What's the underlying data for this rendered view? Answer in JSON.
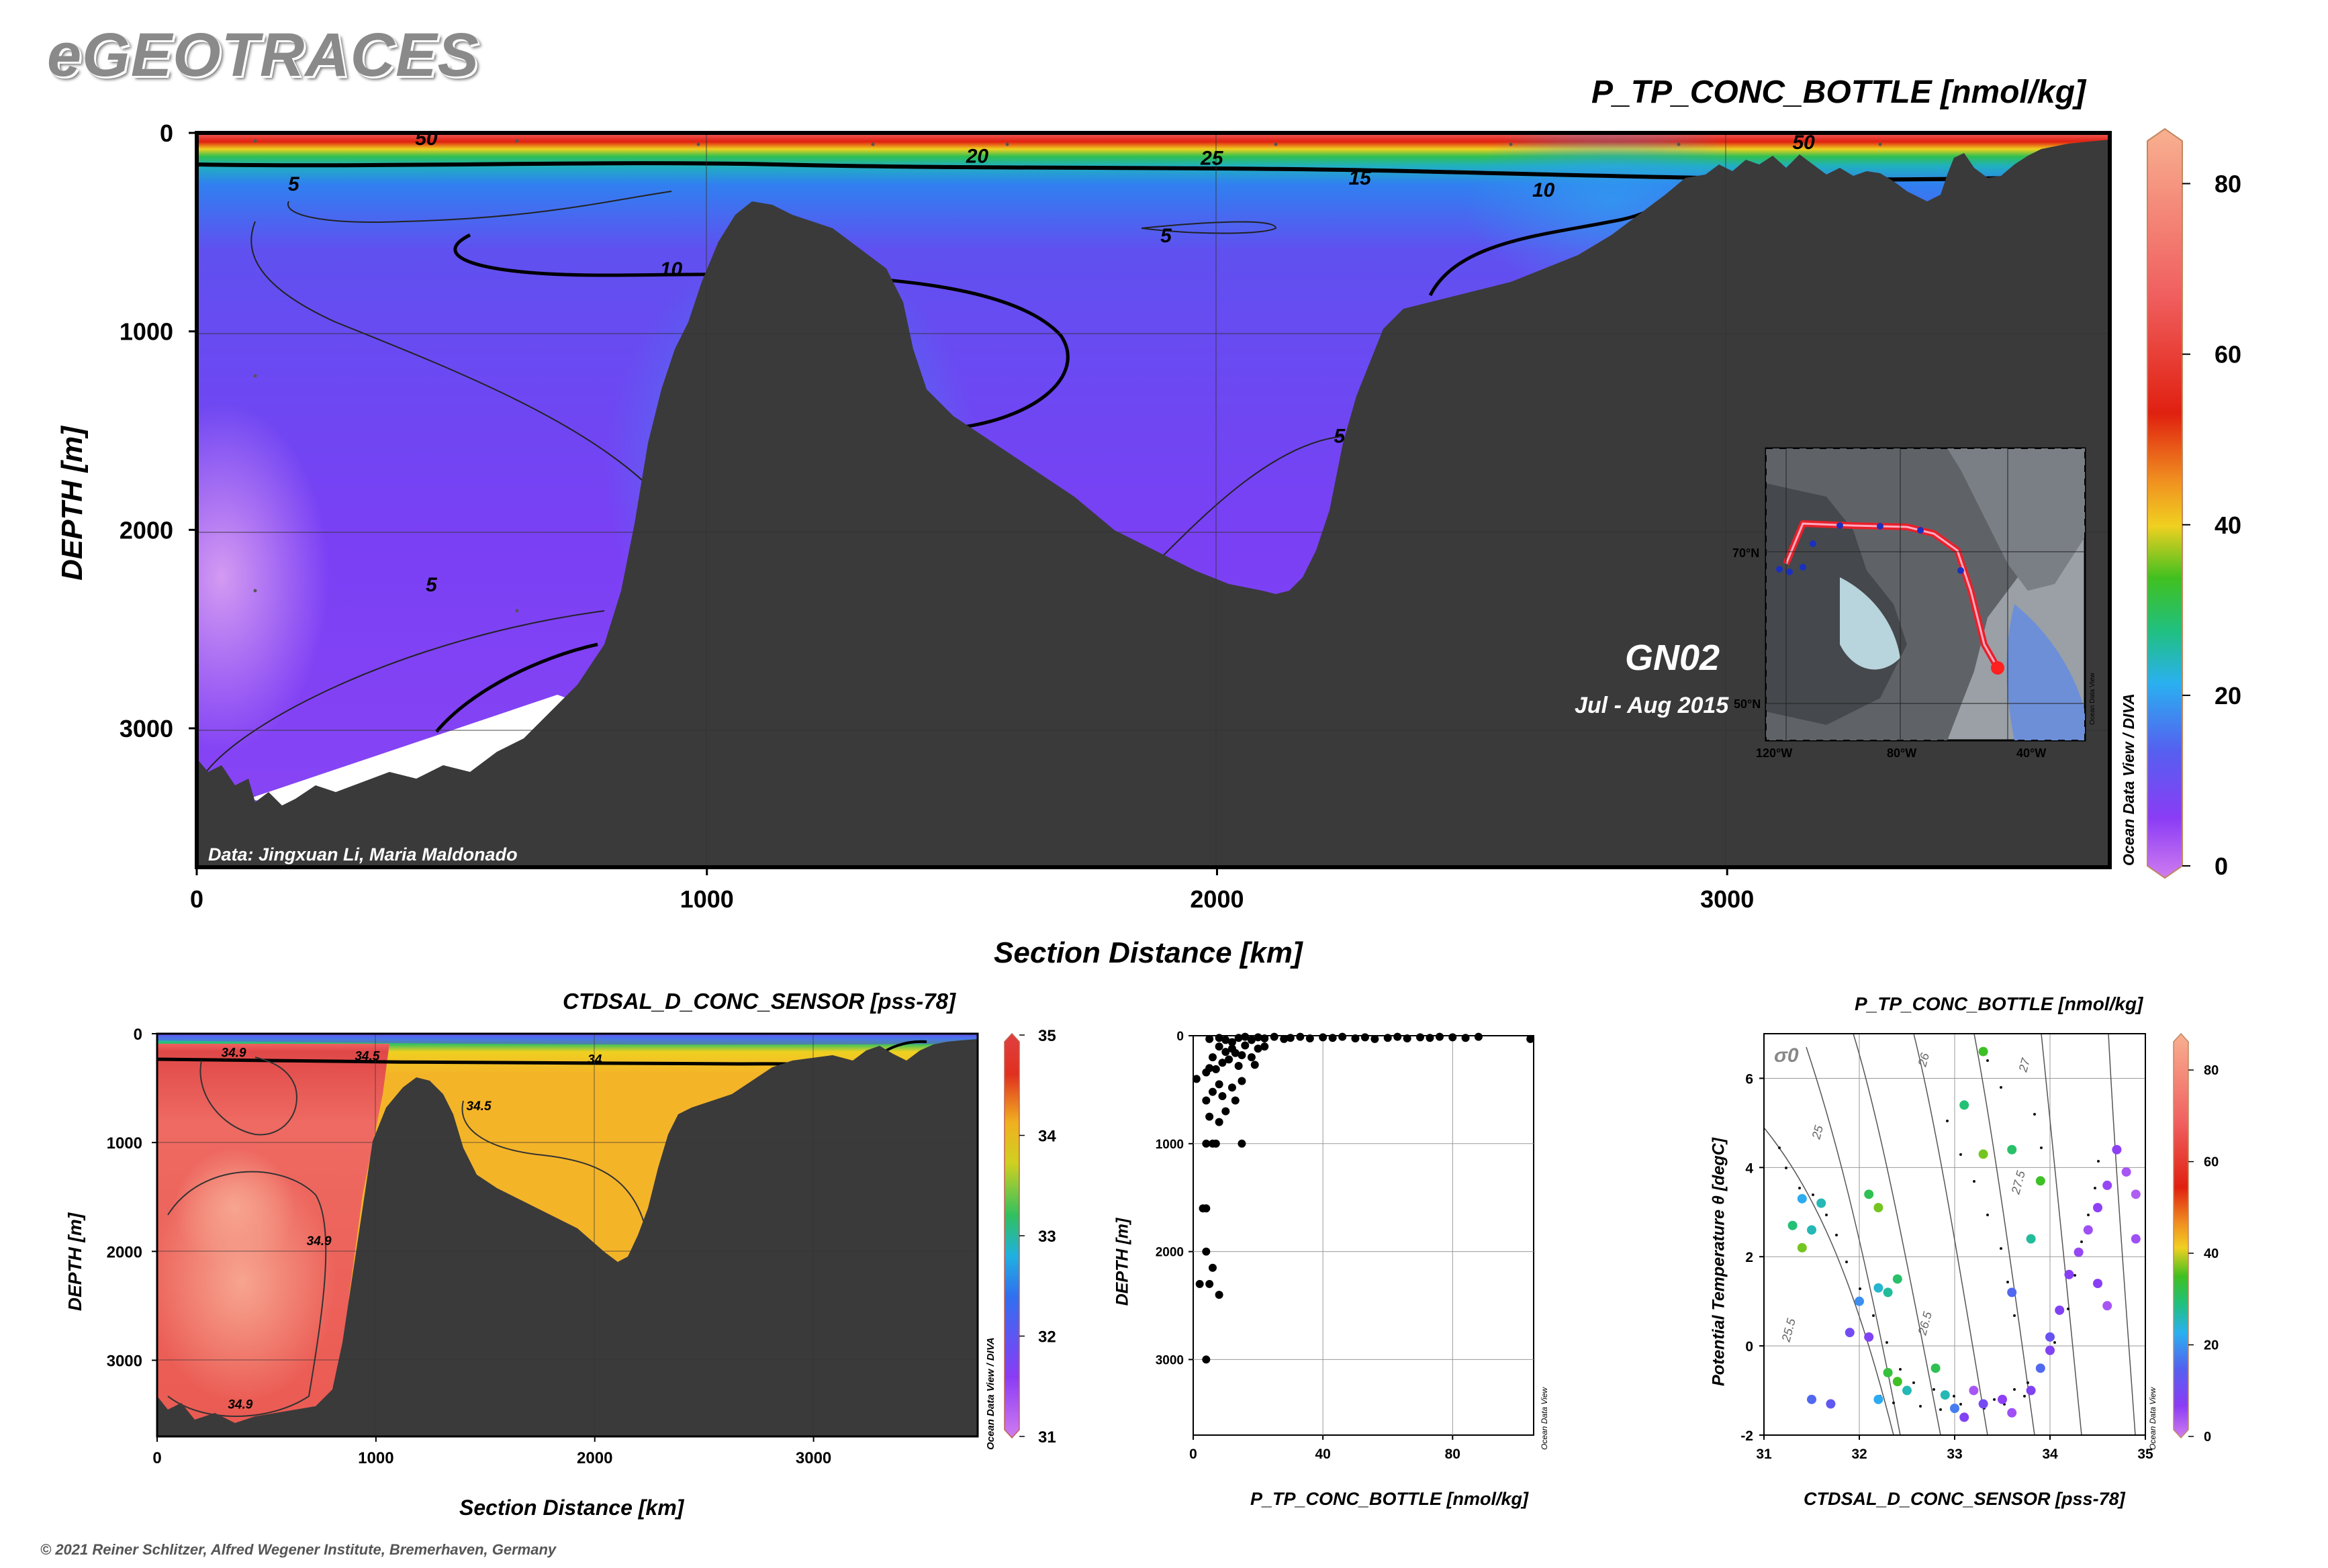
{
  "header": {
    "brand": "eGEOTRACES",
    "copyright": "© 2021 Reiner Schlitzer, Alfred Wegener Institute, Bremerhaven, Germany"
  },
  "main_section": {
    "title": "P_TP_CONC_BOTTLE [nmol/kg]",
    "ylabel": "DEPTH [m]",
    "xlabel": "Section Distance [km]",
    "data_credit": "Data: Jingxuan Li, Maria Maldonado",
    "section_name": "GN02",
    "date": "Jul - Aug 2015",
    "odv_credit": "Ocean Data View / DIVA",
    "map_credit": "Ocean Data View",
    "map_lat_labels": [
      "70°N",
      "50°N"
    ],
    "map_lon_labels": [
      "120°W",
      "80°W",
      "40°W"
    ]
  },
  "salinity_section": {
    "title": "CTDSAL_D_CONC_SENSOR [pss-78]",
    "ylabel": "DEPTH [m]",
    "xlabel": "Section Distance [km]",
    "odv_credit": "Ocean Data View / DIVA"
  },
  "profile_plot": {
    "ylabel": "DEPTH [m]",
    "xlabel": "P_TP_CONC_BOTTLE [nmol/kg]",
    "odv_credit": "Ocean Data View"
  },
  "ts_plot": {
    "title": "P_TP_CONC_BOTTLE [nmol/kg]",
    "ylabel": "Potential Temperature θ [degC]",
    "xlabel": "CTDSAL_D_CONC_SENSOR [pss-78]",
    "sigma_label": "σ0",
    "odv_credit": "Ocean Data View"
  },
  "colors": {
    "seafloor": "#3a3a3a",
    "phosphorus_ramp": [
      "#d07cf0",
      "#8a3cf5",
      "#5560f0",
      "#2ab0f0",
      "#20c080",
      "#40c020",
      "#f0d020",
      "#f09020",
      "#e02010",
      "#f06060",
      "#f8b090"
    ],
    "salinity_ramp": [
      "#d07cf0",
      "#8a3cf5",
      "#3070f0",
      "#20b0e0",
      "#30c060",
      "#d0d020",
      "#f0b020",
      "#e03020",
      "#e04040"
    ]
  },
  "chart_data": [
    {
      "type": "heatmap",
      "name": "phosphorus_section",
      "title": "P_TP_CONC_BOTTLE [nmol/kg]",
      "xlabel": "Section Distance [km]",
      "ylabel": "DEPTH [m]",
      "xlim": [
        0,
        3750
      ],
      "ylim": [
        3700,
        0
      ],
      "x_ticks": [
        0,
        1000,
        2000,
        3000
      ],
      "y_ticks": [
        0,
        1000,
        2000,
        3000
      ],
      "colorbar": {
        "range": [
          0,
          85
        ],
        "ticks": [
          0,
          20,
          40,
          60,
          80
        ]
      },
      "contour_labels": [
        {
          "label": "50",
          "x": 450,
          "depth": 20
        },
        {
          "label": "20",
          "x": 1530,
          "depth": 110
        },
        {
          "label": "25",
          "x": 1990,
          "depth": 120
        },
        {
          "label": "15",
          "x": 2280,
          "depth": 220
        },
        {
          "label": "10",
          "x": 2640,
          "depth": 280
        },
        {
          "label": "50",
          "x": 3150,
          "depth": 40
        },
        {
          "label": "5",
          "x": 190,
          "depth": 250
        },
        {
          "label": "10",
          "x": 930,
          "depth": 680
        },
        {
          "label": "5",
          "x": 1900,
          "depth": 510
        },
        {
          "label": "5",
          "x": 2240,
          "depth": 1520
        },
        {
          "label": "5",
          "x": 460,
          "depth": 2270
        }
      ]
    },
    {
      "type": "heatmap",
      "name": "salinity_section",
      "title": "CTDSAL_D_CONC_SENSOR [pss-78]",
      "xlabel": "Section Distance [km]",
      "ylabel": "DEPTH [m]",
      "xlim": [
        0,
        3750
      ],
      "ylim": [
        3700,
        0
      ],
      "x_ticks": [
        0,
        1000,
        2000,
        3000
      ],
      "y_ticks": [
        0,
        1000,
        2000,
        3000
      ],
      "colorbar": {
        "range": [
          31,
          35
        ],
        "ticks": [
          31,
          32,
          33,
          34,
          35
        ]
      },
      "contour_labels": [
        {
          "label": "34.9",
          "x": 350,
          "depth": 170
        },
        {
          "label": "34.5",
          "x": 960,
          "depth": 200
        },
        {
          "label": "34",
          "x": 2000,
          "depth": 230
        },
        {
          "label": "34.5",
          "x": 1470,
          "depth": 660
        },
        {
          "label": "34.9",
          "x": 740,
          "depth": 1900
        },
        {
          "label": "34.9",
          "x": 380,
          "depth": 3400
        }
      ]
    },
    {
      "type": "scatter",
      "name": "phosphorus_profile",
      "xlabel": "P_TP_CONC_BOTTLE [nmol/kg]",
      "ylabel": "DEPTH [m]",
      "xlim": [
        0,
        105
      ],
      "ylim": [
        3700,
        0
      ],
      "x_ticks": [
        0,
        40,
        80
      ],
      "y_ticks": [
        0,
        1000,
        2000,
        3000
      ],
      "points": [
        {
          "x": 5,
          "y": 30
        },
        {
          "x": 8,
          "y": 20
        },
        {
          "x": 10,
          "y": 40
        },
        {
          "x": 12,
          "y": 60
        },
        {
          "x": 14,
          "y": 20
        },
        {
          "x": 16,
          "y": 10
        },
        {
          "x": 18,
          "y": 40
        },
        {
          "x": 20,
          "y": 15
        },
        {
          "x": 22,
          "y": 25
        },
        {
          "x": 25,
          "y": 10
        },
        {
          "x": 28,
          "y": 30
        },
        {
          "x": 30,
          "y": 20
        },
        {
          "x": 33,
          "y": 10
        },
        {
          "x": 36,
          "y": 25
        },
        {
          "x": 40,
          "y": 15
        },
        {
          "x": 43,
          "y": 20
        },
        {
          "x": 46,
          "y": 10
        },
        {
          "x": 50,
          "y": 25
        },
        {
          "x": 53,
          "y": 15
        },
        {
          "x": 56,
          "y": 30
        },
        {
          "x": 60,
          "y": 20
        },
        {
          "x": 63,
          "y": 10
        },
        {
          "x": 66,
          "y": 25
        },
        {
          "x": 70,
          "y": 15
        },
        {
          "x": 73,
          "y": 20
        },
        {
          "x": 76,
          "y": 10
        },
        {
          "x": 80,
          "y": 15
        },
        {
          "x": 84,
          "y": 20
        },
        {
          "x": 88,
          "y": 10
        },
        {
          "x": 104,
          "y": 30
        },
        {
          "x": 8,
          "y": 100
        },
        {
          "x": 10,
          "y": 150
        },
        {
          "x": 12,
          "y": 120
        },
        {
          "x": 15,
          "y": 180
        },
        {
          "x": 11,
          "y": 220
        },
        {
          "x": 18,
          "y": 200
        },
        {
          "x": 20,
          "y": 120
        },
        {
          "x": 22,
          "y": 100
        },
        {
          "x": 16,
          "y": 90
        },
        {
          "x": 13,
          "y": 160
        },
        {
          "x": 6,
          "y": 200
        },
        {
          "x": 9,
          "y": 250
        },
        {
          "x": 14,
          "y": 280
        },
        {
          "x": 19,
          "y": 270
        },
        {
          "x": 1,
          "y": 400
        },
        {
          "x": 4,
          "y": 340
        },
        {
          "x": 5,
          "y": 300
        },
        {
          "x": 7,
          "y": 310
        },
        {
          "x": 8,
          "y": 450
        },
        {
          "x": 6,
          "y": 520
        },
        {
          "x": 9,
          "y": 560
        },
        {
          "x": 12,
          "y": 480
        },
        {
          "x": 15,
          "y": 420
        },
        {
          "x": 4,
          "y": 600
        },
        {
          "x": 10,
          "y": 700
        },
        {
          "x": 13,
          "y": 600
        },
        {
          "x": 5,
          "y": 750
        },
        {
          "x": 8,
          "y": 800
        },
        {
          "x": 4,
          "y": 1000
        },
        {
          "x": 6,
          "y": 1000
        },
        {
          "x": 7,
          "y": 1000
        },
        {
          "x": 15,
          "y": 1000
        },
        {
          "x": 3,
          "y": 1600
        },
        {
          "x": 4,
          "y": 1600
        },
        {
          "x": 4,
          "y": 2000
        },
        {
          "x": 6,
          "y": 2150
        },
        {
          "x": 2,
          "y": 2300
        },
        {
          "x": 5,
          "y": 2300
        },
        {
          "x": 8,
          "y": 2400
        },
        {
          "x": 4,
          "y": 3000
        }
      ]
    },
    {
      "type": "scatter",
      "name": "theta_s_diagram",
      "title": "P_TP_CONC_BOTTLE [nmol/kg]",
      "xlabel": "CTDSAL_D_CONC_SENSOR [pss-78]",
      "ylabel": "Potential Temperature θ [degC]",
      "xlim": [
        31,
        35
      ],
      "ylim": [
        -2,
        7
      ],
      "x_ticks": [
        31,
        32,
        33,
        34,
        35
      ],
      "y_ticks": [
        -2,
        0,
        2,
        4,
        6
      ],
      "colorbar": {
        "range": [
          0,
          85
        ],
        "ticks": [
          0,
          20,
          40,
          60,
          80
        ]
      },
      "isopycnal_labels": [
        "25",
        "25.5",
        "26",
        "26.5",
        "27",
        "27.5"
      ],
      "points": [
        {
          "s": 31.3,
          "t": 2.7,
          "v": 35
        },
        {
          "s": 31.4,
          "t": 2.2,
          "v": 45
        },
        {
          "s": 31.5,
          "t": 2.6,
          "v": 30
        },
        {
          "s": 31.4,
          "t": 3.3,
          "v": 25
        },
        {
          "s": 31.6,
          "t": 3.2,
          "v": 30
        },
        {
          "s": 32.1,
          "t": 3.4,
          "v": 38
        },
        {
          "s": 32.2,
          "t": 3.1,
          "v": 45
        },
        {
          "s": 32.4,
          "t": 1.5,
          "v": 36
        },
        {
          "s": 32.2,
          "t": 1.3,
          "v": 28
        },
        {
          "s": 32.3,
          "t": 1.2,
          "v": 32
        },
        {
          "s": 32.0,
          "t": 1.0,
          "v": 22
        },
        {
          "s": 31.9,
          "t": 0.3,
          "v": 12
        },
        {
          "s": 32.1,
          "t": 0.2,
          "v": 10
        },
        {
          "s": 32.3,
          "t": -0.6,
          "v": 40
        },
        {
          "s": 32.4,
          "t": -0.8,
          "v": 42
        },
        {
          "s": 32.5,
          "t": -1.0,
          "v": 30
        },
        {
          "s": 32.2,
          "t": -1.2,
          "v": 25
        },
        {
          "s": 31.7,
          "t": -1.3,
          "v": 15
        },
        {
          "s": 31.5,
          "t": -1.2,
          "v": 18
        },
        {
          "s": 32.8,
          "t": -0.5,
          "v": 38
        },
        {
          "s": 32.9,
          "t": -1.1,
          "v": 30
        },
        {
          "s": 33.0,
          "t": -1.4,
          "v": 20
        },
        {
          "s": 33.1,
          "t": -1.6,
          "v": 10
        },
        {
          "s": 33.2,
          "t": -1.0,
          "v": 5
        },
        {
          "s": 33.3,
          "t": -1.3,
          "v": 12
        },
        {
          "s": 33.5,
          "t": -1.2,
          "v": 8
        },
        {
          "s": 33.6,
          "t": -1.5,
          "v": 6
        },
        {
          "s": 33.8,
          "t": -1.0,
          "v": 10
        },
        {
          "s": 33.9,
          "t": -0.5,
          "v": 18
        },
        {
          "s": 34.0,
          "t": 0.2,
          "v": 14
        },
        {
          "s": 34.1,
          "t": 0.8,
          "v": 10
        },
        {
          "s": 34.2,
          "t": 1.6,
          "v": 9
        },
        {
          "s": 34.3,
          "t": 2.1,
          "v": 7
        },
        {
          "s": 34.4,
          "t": 2.6,
          "v": 6
        },
        {
          "s": 34.5,
          "t": 3.1,
          "v": 8
        },
        {
          "s": 34.6,
          "t": 3.6,
          "v": 7
        },
        {
          "s": 34.8,
          "t": 3.9,
          "v": 5
        },
        {
          "s": 34.9,
          "t": 3.4,
          "v": 4
        },
        {
          "s": 34.9,
          "t": 2.4,
          "v": 6
        },
        {
          "s": 34.5,
          "t": 1.4,
          "v": 9
        },
        {
          "s": 34.6,
          "t": 0.9,
          "v": 5
        },
        {
          "s": 34.7,
          "t": 4.4,
          "v": 8
        },
        {
          "s": 33.3,
          "t": 6.6,
          "v": 42
        },
        {
          "s": 33.1,
          "t": 5.4,
          "v": 35
        },
        {
          "s": 33.6,
          "t": 4.4,
          "v": 36
        },
        {
          "s": 33.3,
          "t": 4.3,
          "v": 45
        },
        {
          "s": 33.9,
          "t": 3.7,
          "v": 42
        },
        {
          "s": 33.8,
          "t": 2.4,
          "v": 32
        },
        {
          "s": 33.6,
          "t": 1.2,
          "v": 18
        },
        {
          "s": 34.0,
          "t": -0.1,
          "v": 10
        }
      ]
    }
  ]
}
